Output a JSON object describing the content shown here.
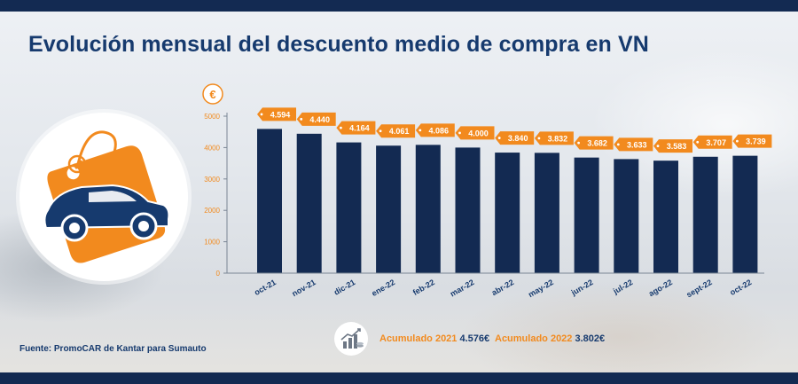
{
  "title": "Evolución mensual del descuento medio de compra en VN",
  "source": "Fuente: PromoCAR de Kantar para Sumauto",
  "accumulated": [
    {
      "label": "Acumulado 2021",
      "value": "4.576€"
    },
    {
      "label": "Acumulado 2022",
      "value": "3.802€"
    }
  ],
  "icons": {
    "badge": "car-price-tag-icon",
    "accumulated": "growth-chart-coins-icon",
    "currency": "euro-icon"
  },
  "colors": {
    "bar": "#132a52",
    "label_bg": "#f28a1e",
    "title": "#163a6e"
  },
  "chart_data": {
    "type": "bar",
    "unit_symbol": "€",
    "categories": [
      "oct-21",
      "nov-21",
      "dic-21",
      "ene-22",
      "feb-22",
      "mar-22",
      "abr-22",
      "may-22",
      "jun-22",
      "jul-22",
      "ago-22",
      "sept-22",
      "oct-22"
    ],
    "values": [
      4594,
      4440,
      4164,
      4061,
      4086,
      4000,
      3840,
      3832,
      3682,
      3633,
      3583,
      3707,
      3739
    ],
    "value_labels": [
      "4.594",
      "4.440",
      "4.164",
      "4.061",
      "4.086",
      "4.000",
      "3.840",
      "3.832",
      "3.682",
      "3.633",
      "3.583",
      "3.707",
      "3.739"
    ],
    "y_ticks": [
      "0",
      "1000",
      "2000",
      "3000",
      "4000",
      "5000"
    ],
    "ylim": [
      0,
      5000
    ],
    "grid": false,
    "legend": "none"
  }
}
